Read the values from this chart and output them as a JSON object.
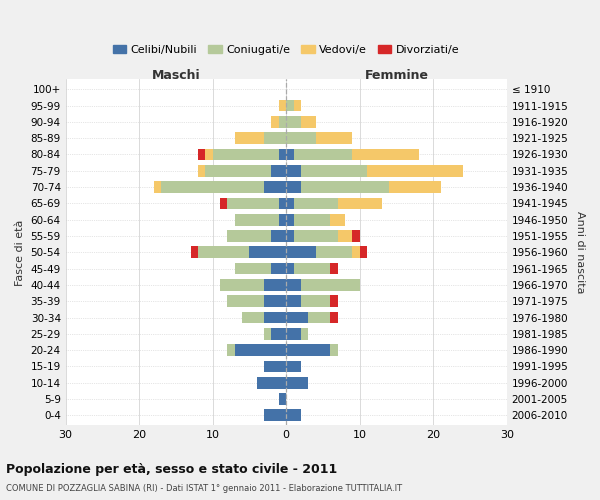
{
  "age_groups": [
    "100+",
    "95-99",
    "90-94",
    "85-89",
    "80-84",
    "75-79",
    "70-74",
    "65-69",
    "60-64",
    "55-59",
    "50-54",
    "45-49",
    "40-44",
    "35-39",
    "30-34",
    "25-29",
    "20-24",
    "15-19",
    "10-14",
    "5-9",
    "0-4"
  ],
  "birth_years": [
    "≤ 1910",
    "1911-1915",
    "1916-1920",
    "1921-1925",
    "1926-1930",
    "1931-1935",
    "1936-1940",
    "1941-1945",
    "1946-1950",
    "1951-1955",
    "1956-1960",
    "1961-1965",
    "1966-1970",
    "1971-1975",
    "1976-1980",
    "1981-1985",
    "1986-1990",
    "1991-1995",
    "1996-2000",
    "2001-2005",
    "2006-2010"
  ],
  "maschi_celibi": [
    0,
    0,
    0,
    0,
    1,
    2,
    3,
    1,
    1,
    2,
    5,
    2,
    3,
    3,
    3,
    2,
    7,
    3,
    4,
    1,
    3
  ],
  "maschi_coniugati": [
    0,
    0,
    1,
    3,
    9,
    9,
    14,
    7,
    6,
    6,
    7,
    5,
    6,
    5,
    3,
    1,
    1,
    0,
    0,
    0,
    0
  ],
  "maschi_vedovi": [
    0,
    1,
    1,
    4,
    1,
    1,
    1,
    0,
    0,
    0,
    0,
    0,
    0,
    0,
    0,
    0,
    0,
    0,
    0,
    0,
    0
  ],
  "maschi_divorziati": [
    0,
    0,
    0,
    0,
    1,
    0,
    0,
    1,
    0,
    0,
    1,
    0,
    0,
    0,
    0,
    0,
    0,
    0,
    0,
    0,
    0
  ],
  "femmine_celibi": [
    0,
    0,
    0,
    0,
    1,
    2,
    2,
    1,
    1,
    1,
    4,
    1,
    2,
    2,
    3,
    2,
    6,
    2,
    3,
    0,
    2
  ],
  "femmine_coniugati": [
    0,
    1,
    2,
    4,
    8,
    9,
    12,
    6,
    5,
    6,
    5,
    5,
    8,
    4,
    3,
    1,
    1,
    0,
    0,
    0,
    0
  ],
  "femmine_vedovi": [
    0,
    1,
    2,
    5,
    9,
    13,
    7,
    6,
    2,
    2,
    1,
    0,
    0,
    0,
    0,
    0,
    0,
    0,
    0,
    0,
    0
  ],
  "femmine_divorziati": [
    0,
    0,
    0,
    0,
    0,
    0,
    0,
    0,
    0,
    1,
    1,
    1,
    0,
    1,
    1,
    0,
    0,
    0,
    0,
    0,
    0
  ],
  "color_celibi": "#4472a8",
  "color_coniugati": "#b5c99a",
  "color_vedovi": "#f5c869",
  "color_divorziati": "#d62728",
  "title": "Popolazione per età, sesso e stato civile - 2011",
  "subtitle": "COMUNE DI POZZAGLIA SABINA (RI) - Dati ISTAT 1° gennaio 2011 - Elaborazione TUTTITALIA.IT",
  "ylabel": "Fasce di età",
  "ylabel_right": "Anni di nascita",
  "xlabel_left": "Maschi",
  "xlabel_right": "Femmine",
  "xlim": 30,
  "legend_labels": [
    "Celibi/Nubili",
    "Coniugati/e",
    "Vedovi/e",
    "Divorziati/e"
  ],
  "bg_color": "#f0f0f0",
  "plot_bg_color": "#ffffff"
}
